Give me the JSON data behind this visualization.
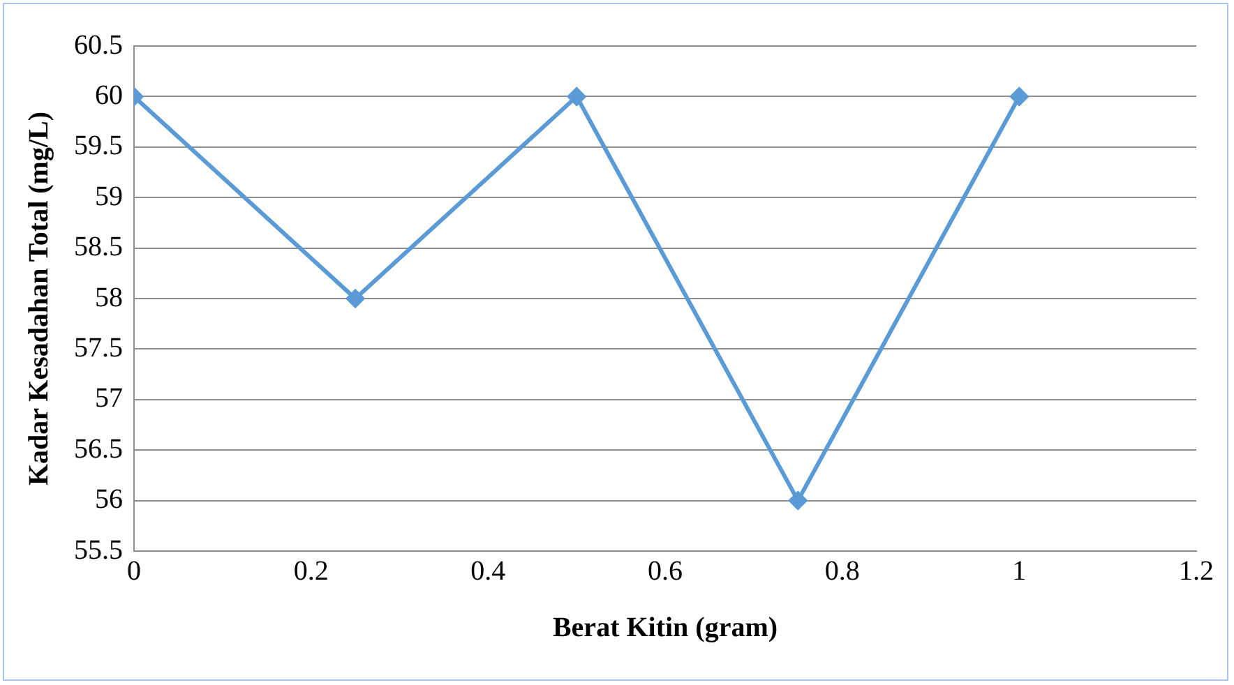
{
  "chart_data": {
    "type": "line",
    "xlabel": "Berat Kitin (gram)",
    "ylabel": "Kadar Kesadahan Total (mg/L)",
    "x": [
      0,
      0.25,
      0.5,
      0.75,
      1
    ],
    "series": [
      {
        "color": "#5b9bd5",
        "values": [
          60,
          58,
          60,
          56,
          60
        ]
      }
    ],
    "xlim": [
      0,
      1.2
    ],
    "xticks": [
      0,
      0.2,
      0.4,
      0.6,
      0.8,
      1,
      1.2
    ],
    "ylim": [
      55.5,
      60.5
    ],
    "yticks": [
      55.5,
      56,
      56.5,
      57,
      57.5,
      58,
      58.5,
      59,
      59.5,
      60,
      60.5
    ],
    "grid": "y",
    "marker": "diamond",
    "line_style": "solid",
    "legend": false
  }
}
